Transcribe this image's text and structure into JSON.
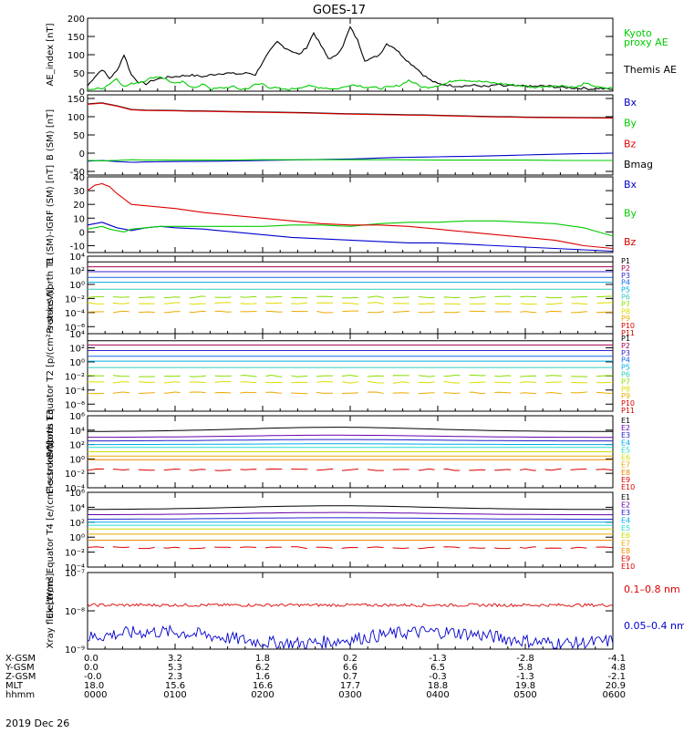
{
  "title": "GOES-17",
  "date_label": "2019 Dec 26",
  "colors": {
    "black": "#000000",
    "red": "#dd0000",
    "green": "#00cc00",
    "blue": "#0000cc",
    "P": [
      "#000000",
      "#aa0055",
      "#3322cc",
      "#1166ee",
      "#00aadd",
      "#33ccbb",
      "#88dd00",
      "#dddd00",
      "#eeaa00",
      "#dd0000",
      "#cc0000"
    ],
    "E": [
      "#000000",
      "#6600aa",
      "#2222cc",
      "#00aaee",
      "#22ddcc",
      "#ccdd00",
      "#eeaa00",
      "#ee8800",
      "#dd0000",
      "#dd0000"
    ]
  },
  "footer": {
    "row_labels": [
      "X-GSM",
      "Y-GSM",
      "Z-GSM",
      "MLT",
      "hhmm"
    ],
    "columns": [
      [
        "0.0",
        "0.0",
        "-0.0",
        "18.0",
        "0000"
      ],
      [
        "3.2",
        "5.3",
        "2.3",
        "15.6",
        "0100"
      ],
      [
        "1.8",
        "6.2",
        "1.6",
        "16.6",
        "0200"
      ],
      [
        "0.2",
        "6.6",
        "0.7",
        "17.7",
        "0300"
      ],
      [
        "-1.3",
        "6.5",
        "-0.3",
        "18.8",
        "0400"
      ],
      [
        "-2.8",
        "5.8",
        "-1.3",
        "19.8",
        "0500"
      ],
      [
        "-4.1",
        "4.8",
        "-2.1",
        "20.9",
        "0600"
      ]
    ]
  },
  "chart_data": [
    {
      "type": "line",
      "ylabel": "AE_index [nT]",
      "ylim": [
        0,
        200
      ],
      "yticks": [
        {
          "v": 0,
          "t": "0"
        },
        {
          "v": 50,
          "t": "50"
        },
        {
          "v": 100,
          "t": "100"
        },
        {
          "v": 150,
          "t": "150"
        },
        {
          "v": 200,
          "t": "200"
        }
      ],
      "x": [
        0,
        5,
        10,
        15,
        20,
        25,
        30,
        35,
        40,
        45,
        50,
        55,
        60,
        65,
        70,
        75,
        80,
        85,
        90,
        95,
        100,
        105,
        110,
        115,
        120,
        125,
        130,
        135,
        140,
        145,
        150,
        155,
        160,
        165,
        170,
        175,
        180,
        185,
        190,
        195,
        200,
        205,
        210,
        215,
        220,
        225,
        230,
        235,
        240,
        245,
        250,
        255,
        260,
        265,
        270,
        275,
        280,
        285,
        290,
        295,
        300,
        305,
        310,
        315,
        320,
        325,
        330,
        335,
        340,
        345,
        350,
        355,
        360
      ],
      "series": [
        {
          "name": "Themis AE",
          "color": "#000000",
          "values": [
            15,
            40,
            60,
            35,
            55,
            100,
            45,
            25,
            20,
            30,
            35,
            38,
            40,
            42,
            44,
            42,
            40,
            45,
            48,
            50,
            48,
            47,
            50,
            45,
            80,
            110,
            135,
            120,
            110,
            100,
            120,
            160,
            125,
            90,
            95,
            125,
            175,
            140,
            85,
            90,
            100,
            130,
            120,
            100,
            80,
            65,
            45,
            30,
            20,
            18,
            15,
            14,
            15,
            16,
            14,
            12,
            18,
            14,
            15,
            13,
            15,
            12,
            14,
            14,
            12,
            10,
            10,
            8,
            8,
            6,
            8,
            6,
            5
          ]
        },
        {
          "name": "Kyoto proxy AE",
          "color": "#00cc00",
          "values": [
            5,
            6,
            8,
            20,
            35,
            12,
            20,
            25,
            30,
            38,
            40,
            30,
            20,
            25,
            15,
            10,
            20,
            5,
            8,
            10,
            12,
            5,
            8,
            18,
            20,
            10,
            8,
            4,
            6,
            10,
            14,
            12,
            10,
            8,
            6,
            10,
            18,
            16,
            12,
            10,
            8,
            10,
            12,
            18,
            30,
            20,
            10,
            12,
            16,
            20,
            28,
            32,
            30,
            28,
            26,
            24,
            22,
            20,
            18,
            15,
            14,
            10,
            12,
            14,
            14,
            16,
            12,
            10,
            20,
            18,
            10,
            8,
            9
          ]
        }
      ],
      "legend": [
        {
          "text": "Kyoto",
          "color": "#00cc00"
        },
        {
          "text": "proxy AE",
          "color": "#00cc00"
        },
        {
          "text": "Themis AE",
          "color": "#000000"
        }
      ]
    },
    {
      "type": "line",
      "ylabel": "B (SM) [nT]",
      "ylim": [
        -60,
        160
      ],
      "yticks": [
        {
          "v": -50,
          "t": "-50"
        },
        {
          "v": 0,
          "t": "0"
        },
        {
          "v": 50,
          "t": "50"
        },
        {
          "v": 100,
          "t": "100"
        },
        {
          "v": 150,
          "t": "150"
        }
      ],
      "x": [
        0,
        10,
        20,
        30,
        40,
        60,
        90,
        120,
        150,
        180,
        210,
        240,
        270,
        300,
        330,
        360
      ],
      "series": [
        {
          "name": "Bmag",
          "color": "#000000",
          "values": [
            135,
            138,
            130,
            120,
            118,
            117,
            115,
            113,
            111,
            108,
            106,
            104,
            101,
            99,
            98,
            97
          ]
        },
        {
          "name": "Bz",
          "color": "#dd0000",
          "values": [
            134,
            137,
            129,
            119,
            117,
            116,
            114,
            112,
            110,
            107,
            105,
            103,
            100,
            98,
            97,
            96
          ]
        },
        {
          "name": "Bx",
          "color": "#0000cc",
          "values": [
            -22,
            -20,
            -23,
            -25,
            -24,
            -23,
            -22,
            -20,
            -18,
            -16,
            -12,
            -10,
            -8,
            -5,
            -2,
            0
          ]
        },
        {
          "name": "By",
          "color": "#00cc00",
          "values": [
            -20,
            -21,
            -20,
            -18,
            -19,
            -19,
            -19,
            -18,
            -18,
            -18,
            -18,
            -19,
            -19,
            -19,
            -20,
            -20
          ]
        }
      ],
      "legend": [
        {
          "text": "Bx",
          "color": "#0000cc"
        },
        {
          "text": "By",
          "color": "#00cc00"
        },
        {
          "text": "Bz",
          "color": "#dd0000"
        },
        {
          "text": "Bmag",
          "color": "#000000"
        }
      ]
    },
    {
      "type": "line",
      "ylabel": "B (SM)-IGRF (SM) [nT]",
      "ylim": [
        -15,
        40
      ],
      "yticks": [
        {
          "v": -10,
          "t": "-10"
        },
        {
          "v": 0,
          "t": "0"
        },
        {
          "v": 10,
          "t": "10"
        },
        {
          "v": 20,
          "t": "20"
        },
        {
          "v": 30,
          "t": "30"
        },
        {
          "v": 40,
          "t": "40"
        }
      ],
      "x": [
        0,
        5,
        10,
        15,
        20,
        25,
        30,
        40,
        50,
        60,
        80,
        100,
        120,
        140,
        160,
        180,
        200,
        220,
        240,
        260,
        280,
        300,
        320,
        340,
        360
      ],
      "series": [
        {
          "name": "Bx",
          "color": "#0000cc",
          "values": [
            5,
            6,
            7,
            5,
            3,
            2,
            1,
            3,
            4,
            3,
            2,
            0,
            -2,
            -4,
            -5,
            -6,
            -7,
            -8,
            -8,
            -9,
            -10,
            -11,
            -12,
            -13,
            -14
          ]
        },
        {
          "name": "By",
          "color": "#00cc00",
          "values": [
            2,
            3,
            4,
            2,
            1,
            0,
            2,
            3,
            4,
            4,
            4,
            4,
            4,
            5,
            5,
            4,
            6,
            7,
            7,
            8,
            8,
            7,
            6,
            3,
            -3
          ]
        },
        {
          "name": "Bz",
          "color": "#dd0000",
          "values": [
            30,
            34,
            35,
            33,
            28,
            24,
            20,
            19,
            18,
            17,
            14,
            12,
            10,
            8,
            6,
            5,
            5,
            4,
            2,
            0,
            -2,
            -4,
            -6,
            -10,
            -12
          ]
        }
      ],
      "legend": [
        {
          "text": "Bx",
          "color": "#0000cc"
        },
        {
          "text": "By",
          "color": "#00cc00"
        },
        {
          "text": "Bz",
          "color": "#dd0000"
        }
      ]
    },
    {
      "type": "line",
      "scale": "log",
      "ylabel": "Protons North T1",
      "ylim": [
        -7,
        4
      ],
      "yticks": [
        {
          "v": 4,
          "t": "10⁴"
        },
        {
          "v": 2,
          "t": "10²"
        },
        {
          "v": 0,
          "t": "10⁰"
        },
        {
          "v": -2,
          "t": "10⁻²"
        },
        {
          "v": -4,
          "t": "10⁻⁴"
        },
        {
          "v": -6,
          "t": "10⁻⁶"
        }
      ],
      "channels": [
        {
          "name": "P1",
          "level": 3.2
        },
        {
          "name": "P2",
          "level": 2.5
        },
        {
          "name": "P3",
          "level": 1.8
        },
        {
          "name": "P4",
          "level": 1.0
        },
        {
          "name": "P5",
          "level": 0.3
        },
        {
          "name": "P6",
          "level": -0.7
        },
        {
          "name": "P7",
          "level": -1.8
        },
        {
          "name": "P8",
          "level": -2.7
        },
        {
          "name": "P9",
          "level": -3.9
        },
        {
          "name": "P10",
          "level": null
        },
        {
          "name": "P11",
          "level": null
        }
      ],
      "legend_prefix": "P"
    },
    {
      "type": "line",
      "scale": "log",
      "ylabel": "Protons Equator T2 [p/(cm²-s-sr-keV)]",
      "ylim": [
        -7,
        4
      ],
      "yticks": [
        {
          "v": 4,
          "t": "10⁴"
        },
        {
          "v": 2,
          "t": "10²"
        },
        {
          "v": 0,
          "t": "10⁰"
        },
        {
          "v": -2,
          "t": "10⁻²"
        },
        {
          "v": -4,
          "t": "10⁻⁴"
        },
        {
          "v": -6,
          "t": "10⁻⁶"
        }
      ],
      "channels": [
        {
          "name": "P1",
          "level": 3.0
        },
        {
          "name": "P2",
          "level": 2.4
        },
        {
          "name": "P3",
          "level": 1.6
        },
        {
          "name": "P4",
          "level": 0.8
        },
        {
          "name": "P5",
          "level": 0.1
        },
        {
          "name": "P6",
          "level": -0.8
        },
        {
          "name": "P7",
          "level": -2.0
        },
        {
          "name": "P8",
          "level": -2.9
        },
        {
          "name": "P9",
          "level": -4.4
        },
        {
          "name": "P10",
          "level": null
        },
        {
          "name": "P11",
          "level": null
        }
      ],
      "legend_prefix": "P"
    },
    {
      "type": "line",
      "scale": "log",
      "ylabel": "Electrons North T3",
      "ylim": [
        -4,
        6
      ],
      "yticks": [
        {
          "v": 6,
          "t": "10⁶"
        },
        {
          "v": 4,
          "t": "10⁴"
        },
        {
          "v": 2,
          "t": "10²"
        },
        {
          "v": 0,
          "t": "10⁰"
        },
        {
          "v": -2,
          "t": "10⁻²"
        },
        {
          "v": -4,
          "t": "10⁻⁴"
        }
      ],
      "channels": [
        {
          "name": "E1",
          "level": 3.8,
          "bump": 0.6
        },
        {
          "name": "E2",
          "level": 3.0,
          "bump": 0.3
        },
        {
          "name": "E3",
          "level": 2.5,
          "bump": 0.2
        },
        {
          "name": "E4",
          "level": 2.0,
          "bump": 0.1
        },
        {
          "name": "E5",
          "level": 1.6
        },
        {
          "name": "E6",
          "level": 1.0
        },
        {
          "name": "E7",
          "level": 0.4
        },
        {
          "name": "E8",
          "level": -0.1
        },
        {
          "name": "E9",
          "level": -1.5
        },
        {
          "name": "E10",
          "level": null
        }
      ],
      "legend_prefix": "E"
    },
    {
      "type": "line",
      "scale": "log",
      "ylabel": "Electrons Equator T4 [e/(cm²-s-sr-keV)]",
      "ylim": [
        -4,
        6
      ],
      "yticks": [
        {
          "v": 6,
          "t": "10⁶"
        },
        {
          "v": 4,
          "t": "10⁴"
        },
        {
          "v": 2,
          "t": "10²"
        },
        {
          "v": 0,
          "t": "10⁰"
        },
        {
          "v": -2,
          "t": "10⁻²"
        },
        {
          "v": -4,
          "t": "10⁻⁴"
        }
      ],
      "channels": [
        {
          "name": "E1",
          "level": 3.7,
          "bump": 0.5
        },
        {
          "name": "E2",
          "level": 3.0,
          "bump": 0.3
        },
        {
          "name": "E3",
          "level": 2.4,
          "bump": 0.2
        },
        {
          "name": "E4",
          "level": 2.0
        },
        {
          "name": "E5",
          "level": 1.6
        },
        {
          "name": "E6",
          "level": 1.1
        },
        {
          "name": "E7",
          "level": 0.4
        },
        {
          "name": "E8",
          "level": -0.4
        },
        {
          "name": "E9",
          "level": -1.4
        },
        {
          "name": "E10",
          "level": null
        }
      ],
      "legend_prefix": "E"
    },
    {
      "type": "line",
      "scale": "log",
      "ylabel": "Xray flux [W/m²]",
      "ylim": [
        -9,
        -7
      ],
      "yticks": [
        {
          "v": -7,
          "t": "10⁻⁷"
        },
        {
          "v": -8,
          "t": "10⁻⁸"
        },
        {
          "v": -9,
          "t": "10⁻⁹"
        }
      ],
      "series": [
        {
          "name": "0.1-0.8 nm",
          "color": "#dd0000",
          "level": -7.85
        },
        {
          "name": "0.05-0.4 nm",
          "color": "#0000cc",
          "level": -8.7
        }
      ],
      "legend": [
        {
          "text": "0.1–0.8 nm",
          "color": "#dd0000"
        },
        {
          "text": "0.05–0.4 nm",
          "color": "#0000cc"
        }
      ]
    }
  ]
}
